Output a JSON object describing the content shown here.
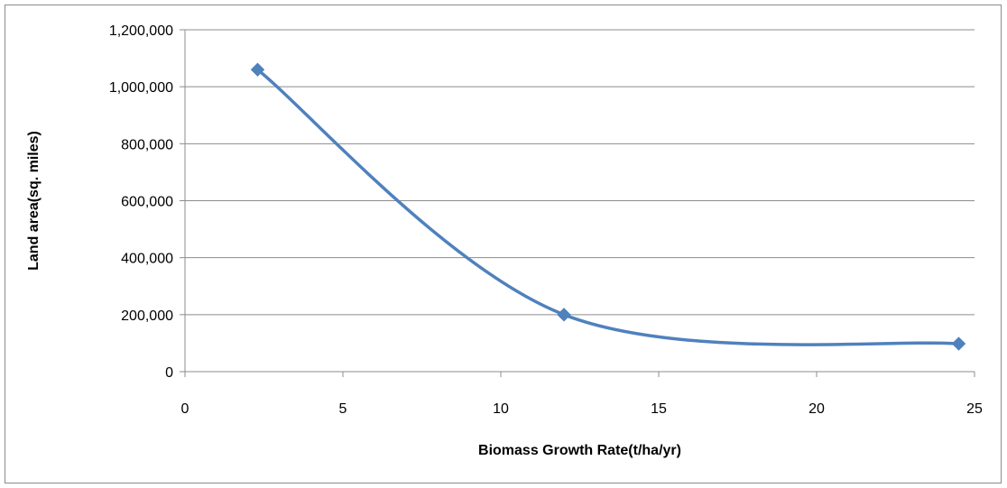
{
  "chart_data": {
    "type": "scatter",
    "title": "",
    "xlabel": "Biomass Growth Rate(t/ha/yr)",
    "ylabel": "Land area(sq. miles)",
    "xlim": [
      0,
      25
    ],
    "ylim": [
      0,
      1200000
    ],
    "x_ticks": [
      0,
      5,
      10,
      15,
      20,
      25
    ],
    "x_tick_labels": [
      "0",
      "5",
      "10",
      "15",
      "20",
      "25"
    ],
    "y_ticks": [
      0,
      200000,
      400000,
      600000,
      800000,
      1000000,
      1200000
    ],
    "y_tick_labels": [
      "0",
      "200,000",
      "400,000",
      "600,000",
      "800,000",
      "1,000,000",
      "1,200,000"
    ],
    "grid": true,
    "smooth_line": true,
    "marker": "diamond",
    "series": [
      {
        "color": "#4f81bd",
        "points": [
          {
            "x": 2.3,
            "y": 1060000
          },
          {
            "x": 12,
            "y": 200000
          },
          {
            "x": 24.5,
            "y": 98000
          }
        ]
      }
    ]
  }
}
